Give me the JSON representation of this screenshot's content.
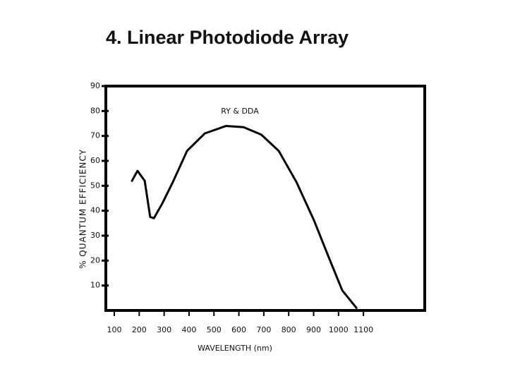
{
  "chart_data": {
    "type": "line",
    "title": "4.  Linear Photodiode Array",
    "xlabel": "WAVELENGTH (nm)",
    "ylabel": "% QUANTUM EFFICIENCY",
    "annotation": "RY & DDA",
    "x": [
      171,
      193,
      222,
      244,
      259,
      293,
      335,
      392,
      463,
      548,
      619,
      690,
      760,
      831,
      902,
      958,
      1015,
      1072
    ],
    "series": [
      {
        "name": "RY & DDA",
        "color": "#000000",
        "values": [
          52,
          56,
          52,
          37.5,
          37,
          43,
          51.5,
          64,
          71,
          74,
          73.5,
          70.5,
          64,
          51.5,
          36,
          22,
          8,
          1
        ]
      }
    ],
    "xlim": [
      66,
      1346
    ],
    "xticks": [
      100,
      200,
      300,
      400,
      500,
      600,
      700,
      800,
      900,
      1000,
      1100
    ],
    "ylim": [
      0,
      90
    ],
    "yticks": [
      10,
      20,
      30,
      40,
      50,
      60,
      70,
      80,
      90
    ],
    "grid": false
  }
}
